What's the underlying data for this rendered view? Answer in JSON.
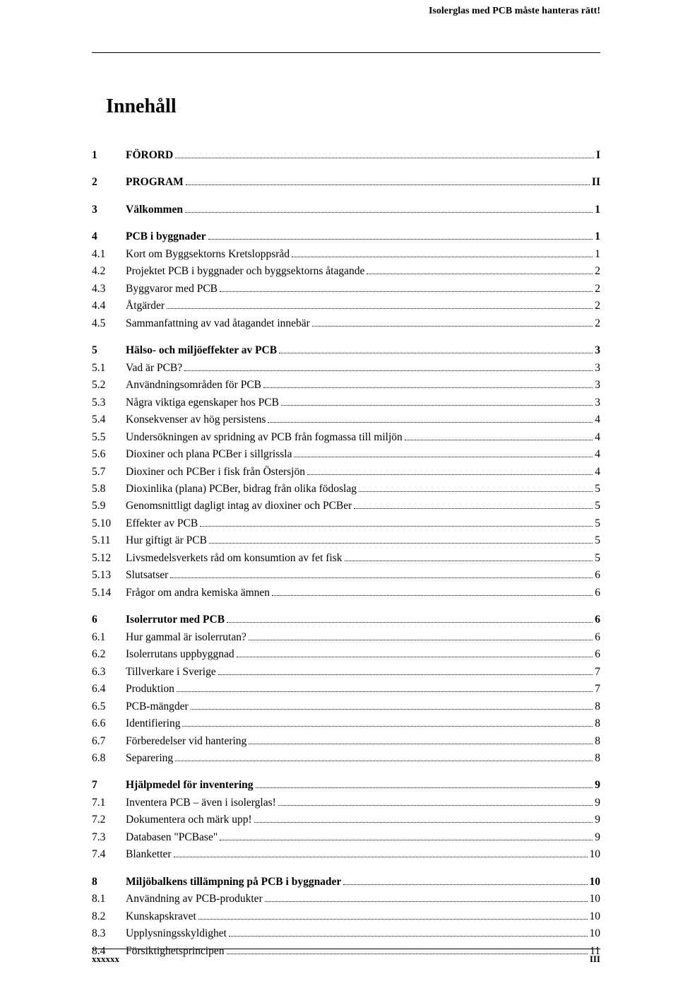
{
  "running_header": "Isolerglas med PCB måste hanteras rätt!",
  "title": "Innehåll",
  "footer": {
    "left": "xxxxxx",
    "right": "III"
  },
  "toc": [
    {
      "type": "main",
      "num": "1",
      "text": "FÖRORD",
      "page": "I"
    },
    {
      "type": "main",
      "num": "2",
      "text": "PROGRAM",
      "page": "II"
    },
    {
      "type": "main",
      "num": "3",
      "text": "Välkommen",
      "page": "1"
    },
    {
      "type": "main",
      "num": "4",
      "text": "PCB i byggnader",
      "page": "1"
    },
    {
      "type": "sub",
      "num": "4.1",
      "text": "Kort om Byggsektorns Kretsloppsråd",
      "page": "1"
    },
    {
      "type": "sub",
      "num": "4.2",
      "text": "Projektet PCB i byggnader och byggsektorns åtagande",
      "page": "2"
    },
    {
      "type": "sub",
      "num": "4.3",
      "text": "Byggvaror med PCB",
      "page": "2"
    },
    {
      "type": "sub",
      "num": "4.4",
      "text": "Åtgärder",
      "page": "2"
    },
    {
      "type": "sub",
      "num": "4.5",
      "text": "Sammanfattning av vad åtagandet innebär",
      "page": "2"
    },
    {
      "type": "main",
      "num": "5",
      "text": "Hälso- och miljöeffekter av PCB",
      "page": "3"
    },
    {
      "type": "sub",
      "num": "5.1",
      "text": "Vad är PCB?",
      "page": "3"
    },
    {
      "type": "sub",
      "num": "5.2",
      "text": "Användningsområden för PCB",
      "page": "3"
    },
    {
      "type": "sub",
      "num": "5.3",
      "text": "Några viktiga egenskaper hos PCB",
      "page": "3"
    },
    {
      "type": "sub",
      "num": "5.4",
      "text": "Konsekvenser av hög persistens",
      "page": "4"
    },
    {
      "type": "sub",
      "num": "5.5",
      "text": "Undersökningen av spridning av PCB från fogmassa till miljön",
      "page": "4"
    },
    {
      "type": "sub",
      "num": "5.6",
      "text": "Dioxiner och plana PCBer i sillgrissla",
      "page": "4"
    },
    {
      "type": "sub",
      "num": "5.7",
      "text": "Dioxiner och PCBer i fisk från Östersjön",
      "page": "4"
    },
    {
      "type": "sub",
      "num": "5.8",
      "text": "Dioxinlika (plana) PCBer, bidrag från olika födoslag",
      "page": "5"
    },
    {
      "type": "sub",
      "num": "5.9",
      "text": "Genomsnittligt dagligt intag av dioxiner och PCBer",
      "page": "5"
    },
    {
      "type": "sub",
      "num": "5.10",
      "text": "Effekter av PCB",
      "page": "5"
    },
    {
      "type": "sub",
      "num": "5.11",
      "text": "Hur giftigt är PCB",
      "page": "5"
    },
    {
      "type": "sub",
      "num": "5.12",
      "text": "Livsmedelsverkets råd om konsumtion av fet fisk",
      "page": "5"
    },
    {
      "type": "sub",
      "num": "5.13",
      "text": "Slutsatser",
      "page": "6"
    },
    {
      "type": "sub",
      "num": "5.14",
      "text": "Frågor om andra kemiska ämnen",
      "page": "6"
    },
    {
      "type": "main",
      "num": "6",
      "text": "Isolerrutor med PCB",
      "page": "6"
    },
    {
      "type": "sub",
      "num": "6.1",
      "text": "Hur gammal är isolerrutan?",
      "page": "6"
    },
    {
      "type": "sub",
      "num": "6.2",
      "text": "Isolerrutans uppbyggnad",
      "page": "6"
    },
    {
      "type": "sub",
      "num": "6.3",
      "text": "Tillverkare i Sverige",
      "page": "7"
    },
    {
      "type": "sub",
      "num": "6.4",
      "text": "Produktion",
      "page": "7"
    },
    {
      "type": "sub",
      "num": "6.5",
      "text": "PCB-mängder",
      "page": "8"
    },
    {
      "type": "sub",
      "num": "6.6",
      "text": "Identifiering",
      "page": "8"
    },
    {
      "type": "sub",
      "num": "6.7",
      "text": "Förberedelser vid hantering",
      "page": "8"
    },
    {
      "type": "sub",
      "num": "6.8",
      "text": "Separering",
      "page": "8"
    },
    {
      "type": "main",
      "num": "7",
      "text": "Hjälpmedel för inventering",
      "page": "9"
    },
    {
      "type": "sub",
      "num": "7.1",
      "text": "Inventera PCB – även i isolerglas!",
      "page": "9"
    },
    {
      "type": "sub",
      "num": "7.2",
      "text": "Dokumentera och märk upp!",
      "page": "9"
    },
    {
      "type": "sub",
      "num": "7.3",
      "text": "Databasen \"PCBase\"",
      "page": "9"
    },
    {
      "type": "sub",
      "num": "7.4",
      "text": "Blanketter",
      "page": "10"
    },
    {
      "type": "main",
      "num": "8",
      "text": "Miljöbalkens tillämpning på PCB i byggnader",
      "page": "10"
    },
    {
      "type": "sub",
      "num": "8.1",
      "text": "Användning av PCB-produkter",
      "page": "10"
    },
    {
      "type": "sub",
      "num": "8.2",
      "text": "Kunskapskravet",
      "page": "10"
    },
    {
      "type": "sub",
      "num": "8.3",
      "text": "Upplysningsskyldighet",
      "page": "10"
    },
    {
      "type": "sub",
      "num": "8.4",
      "text": "Försiktighetsprincipen",
      "page": "11"
    }
  ]
}
